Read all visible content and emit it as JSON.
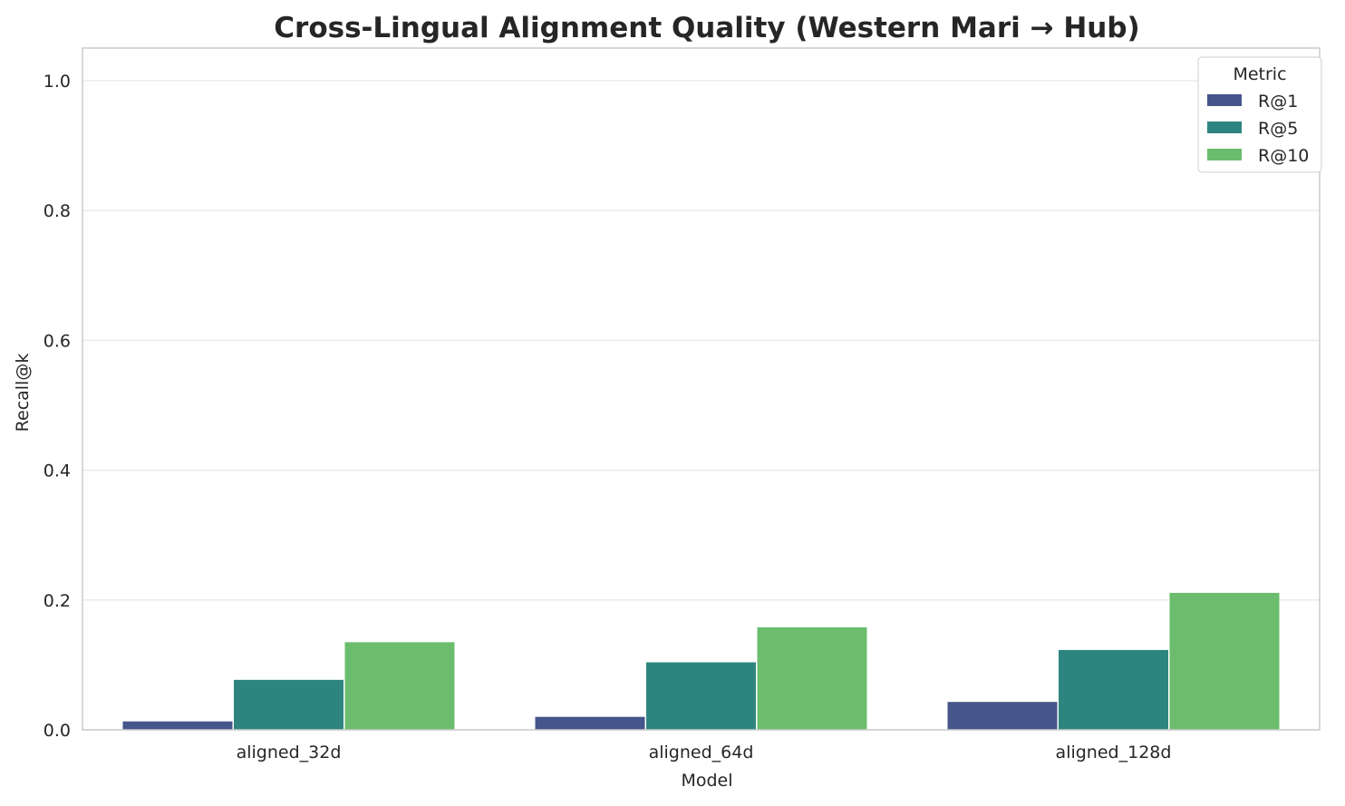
{
  "chart_data": {
    "type": "bar",
    "title": "Cross-Lingual Alignment Quality (Western Mari → Hub)",
    "xlabel": "Model",
    "ylabel": "Recall@k",
    "categories": [
      "aligned_32d",
      "aligned_64d",
      "aligned_128d"
    ],
    "series": [
      {
        "name": "R@1",
        "values": [
          0.013,
          0.02,
          0.043
        ],
        "color": "#46568a"
      },
      {
        "name": "R@5",
        "values": [
          0.077,
          0.104,
          0.123
        ],
        "color": "#2e8580"
      },
      {
        "name": "R@10",
        "values": [
          0.135,
          0.158,
          0.211
        ],
        "color": "#6bbd6d"
      }
    ],
    "ylim": [
      0,
      1.05
    ],
    "yticks": [
      "0.0",
      "0.2",
      "0.4",
      "0.6",
      "0.8",
      "1.0"
    ],
    "grid": true,
    "legend": {
      "title": "Metric",
      "placement": "top-right"
    }
  }
}
